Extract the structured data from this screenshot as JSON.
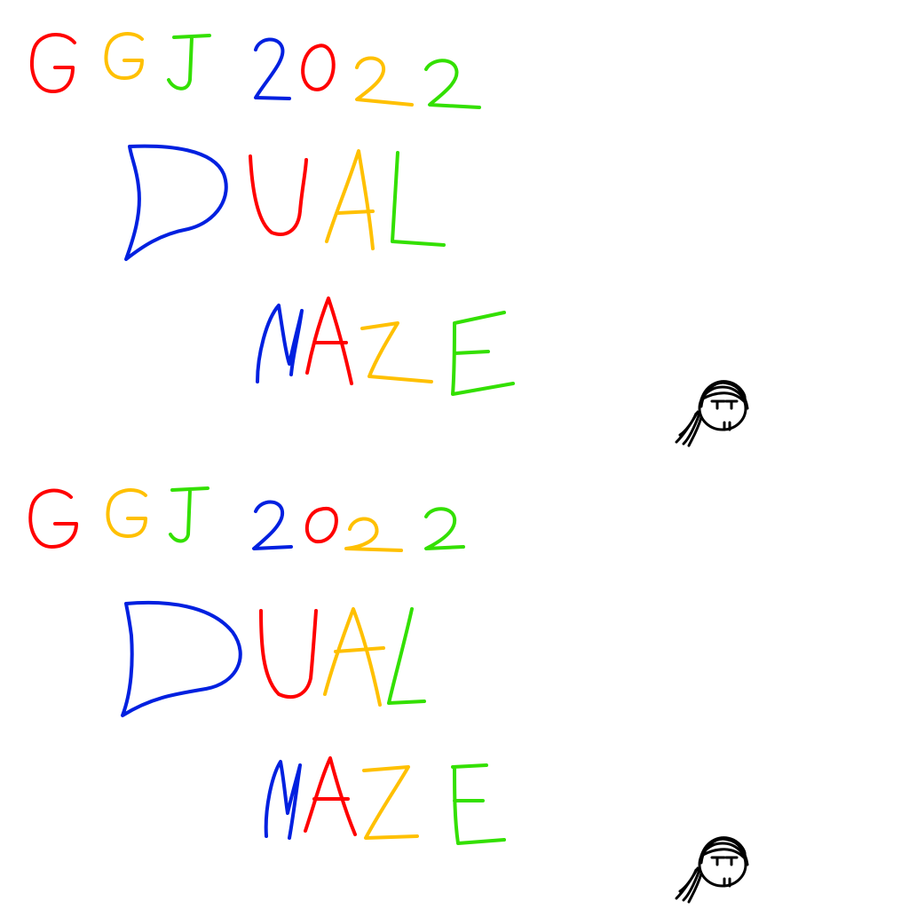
{
  "title_line_1": "GGJ 2022",
  "title_line_2": "DUAL",
  "title_line_3": "MAZE",
  "colors": {
    "red": "#ff0000",
    "yellow": "#ffc000",
    "green": "#33e000",
    "blue": "#0020e0",
    "ink": "#000000",
    "background": "#ffffff"
  },
  "panels": [
    "top-screen",
    "bottom-screen"
  ],
  "character_icon": "girl-head-icon"
}
